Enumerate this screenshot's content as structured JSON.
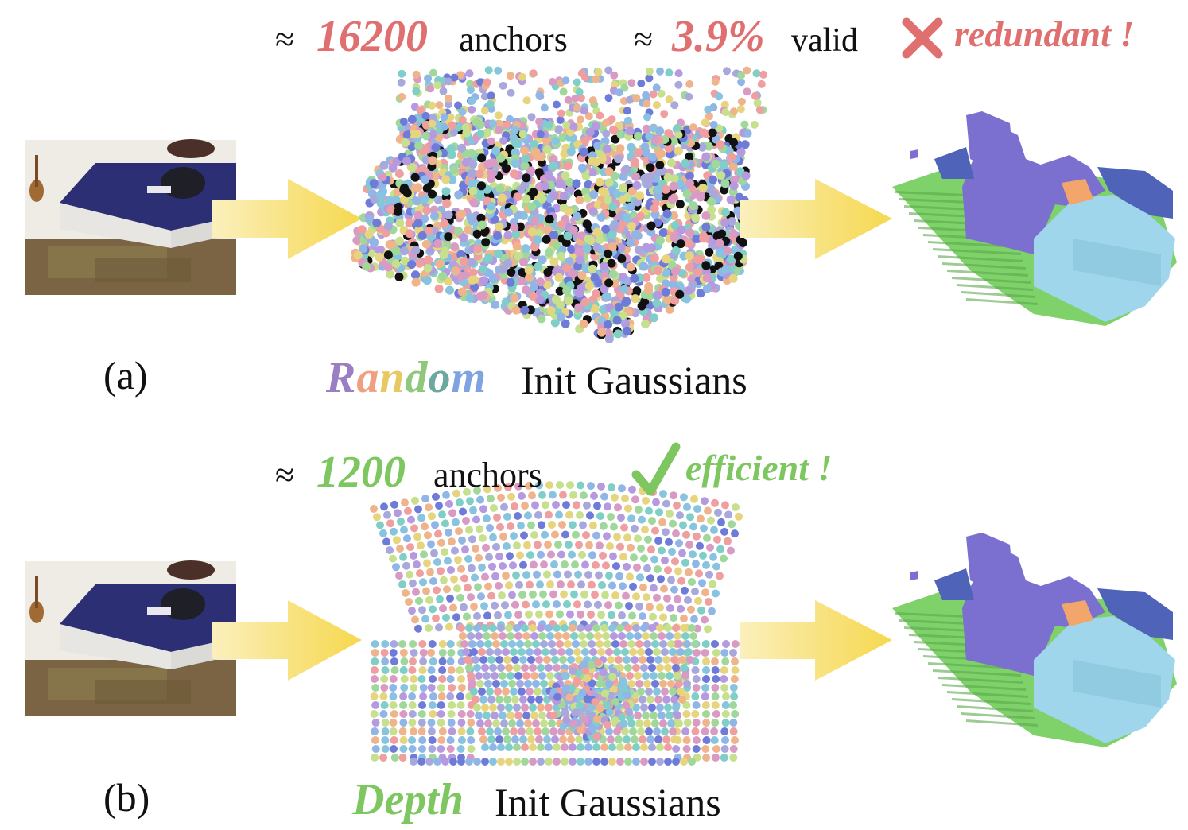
{
  "colors": {
    "red": "#e07070",
    "green": "#7dc660",
    "arrow": "#f7df75",
    "ground": "#7fd16a",
    "wall": "#7b6fd0",
    "wall_dark": "#4f63b8",
    "bed": "#9fd6ec",
    "pillow": "#f2a66b",
    "bed_blue": "#2c2f74"
  },
  "panel_a": {
    "label": "(a)",
    "approx_symbol": "≈",
    "anchor_count": "16200",
    "anchor_word": "anchors",
    "valid_percent": "3.9%",
    "valid_word": "valid",
    "verdict_icon": "cross-icon",
    "verdict": "redundant !",
    "init_prefix": "Random",
    "init_suffix": "Init Gaussians"
  },
  "panel_b": {
    "label": "(b)",
    "approx_symbol": "≈",
    "anchor_count": "1200",
    "anchor_word": "anchors",
    "verdict_icon": "check-icon",
    "verdict": "efficient !",
    "init_prefix": "Depth",
    "init_suffix": "Init Gaussians"
  },
  "random_word_letters": [
    "R",
    "a",
    "n",
    "d",
    "o",
    "m"
  ],
  "random_word_colors": [
    "#9a7fc2",
    "#f0a080",
    "#e8c860",
    "#8fc87a",
    "#6aa8a0",
    "#7fa3e0"
  ]
}
